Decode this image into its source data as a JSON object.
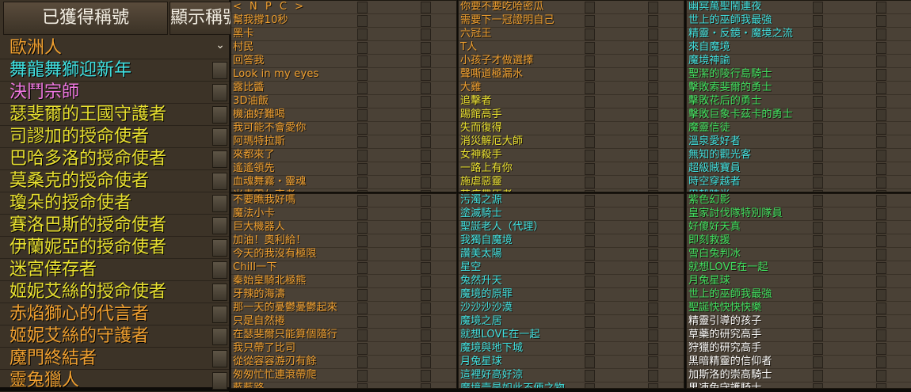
{
  "tabs": {
    "earned": "已獲得稱號",
    "display": "顯示稱號"
  },
  "colors": {
    "orange": "#f0a030",
    "yellow": "#e8e030",
    "cyan": "#40e0e0",
    "pink": "#f078e0",
    "green": "#40e060",
    "white": "#ffffff"
  },
  "left_titles": [
    {
      "text": "歐洲人",
      "color": "orange"
    },
    {
      "text": "舞龍舞獅迎新年",
      "color": "cyan"
    },
    {
      "text": "決鬥宗師",
      "color": "pink"
    },
    {
      "text": "瑟斐爾的王國守護者",
      "color": "yellow"
    },
    {
      "text": "司謬加的授命使者",
      "color": "yellow"
    },
    {
      "text": "巴哈多洛的授命使者",
      "color": "yellow"
    },
    {
      "text": "莫桑克的授命使者",
      "color": "yellow"
    },
    {
      "text": "瓊朵的授命使者",
      "color": "yellow"
    },
    {
      "text": "賽洛巴斯的授命使者",
      "color": "yellow"
    },
    {
      "text": "伊蘭妮亞的授命使者",
      "color": "yellow"
    },
    {
      "text": "迷宮倖存者",
      "color": "yellow"
    },
    {
      "text": "姬妮艾絲的授命使者",
      "color": "yellow"
    },
    {
      "text": "赤焰獅心的代言者",
      "color": "orange"
    },
    {
      "text": "姬妮艾絲的守護者",
      "color": "orange"
    },
    {
      "text": "魔門終結者",
      "color": "orange"
    },
    {
      "text": "靈兔獵人",
      "color": "orange"
    }
  ],
  "panels": [
    {
      "rows": [
        {
          "text": "< N P C >",
          "color": "orange",
          "header": true
        },
        {
          "text": "幫我撐10秒",
          "color": "orange"
        },
        {
          "text": "黑卡",
          "color": "orange"
        },
        {
          "text": "村民",
          "color": "orange"
        },
        {
          "text": "回答我",
          "color": "orange"
        },
        {
          "text": "Look in my eyes",
          "color": "orange"
        },
        {
          "text": "露比醬",
          "color": "orange"
        },
        {
          "text": "3D油飯",
          "color": "orange"
        },
        {
          "text": "機油好難喝",
          "color": "orange"
        },
        {
          "text": "我可能不會愛你",
          "color": "orange"
        },
        {
          "text": "阿瑪特拉斯",
          "color": "orange"
        },
        {
          "text": "來都來了",
          "color": "orange"
        },
        {
          "text": "遙遙領先",
          "color": "orange"
        },
        {
          "text": "血魂舞霧・靈魂",
          "color": "orange"
        },
        {
          "text": "米青靈ㄉ吏者",
          "color": "orange"
        }
      ]
    },
    {
      "rows": [
        {
          "text": "你要不要吃哈密瓜",
          "color": "orange"
        },
        {
          "text": "需要下一冠證明自己",
          "color": "orange"
        },
        {
          "text": "六冠王",
          "color": "orange"
        },
        {
          "text": "T人",
          "color": "orange"
        },
        {
          "text": "小孩子才做選擇",
          "color": "orange"
        },
        {
          "text": "聲嘶道極漏水",
          "color": "orange"
        },
        {
          "text": "大雞",
          "color": "orange"
        },
        {
          "text": "追擊者",
          "color": "yellow"
        },
        {
          "text": "踢館高手",
          "color": "yellow"
        },
        {
          "text": "失而復得",
          "color": "yellow"
        },
        {
          "text": "消災解厄大師",
          "color": "yellow"
        },
        {
          "text": "女神殺手",
          "color": "yellow"
        },
        {
          "text": "一路上有你",
          "color": "yellow"
        },
        {
          "text": "施虐惡靈",
          "color": "yellow"
        },
        {
          "text": "苦痛帶原者",
          "color": "yellow"
        }
      ]
    },
    {
      "rows": [
        {
          "text": "幽冥萬聖鬧連夜",
          "color": "cyan"
        },
        {
          "text": "世上的巫師我最強",
          "color": "cyan"
        },
        {
          "text": "精靈・反鏡・魔境之流",
          "color": "cyan"
        },
        {
          "text": "來自魔境",
          "color": "cyan"
        },
        {
          "text": "魔境神諭",
          "color": "cyan"
        },
        {
          "text": "聖潔的陵行島騎士",
          "color": "green"
        },
        {
          "text": "擊敗索斐爾的勇士",
          "color": "green"
        },
        {
          "text": "擊敗花后的勇士",
          "color": "green"
        },
        {
          "text": "擊敗巨象卡茲卡的勇士",
          "color": "green"
        },
        {
          "text": "魔靈信徒",
          "color": "green"
        },
        {
          "text": "溫泉愛好者",
          "color": "cyan"
        },
        {
          "text": "無知的觀光客",
          "color": "cyan"
        },
        {
          "text": "超級賊寶員",
          "color": "cyan"
        },
        {
          "text": "時空穿越者",
          "color": "cyan"
        },
        {
          "text": "甲殼時尚",
          "color": "cyan"
        }
      ]
    },
    {
      "rows": [
        {
          "text": "不要瞧我好嗎",
          "color": "orange"
        },
        {
          "text": "魔法小卡",
          "color": "orange"
        },
        {
          "text": "巨大機器人",
          "color": "orange"
        },
        {
          "text": "加油！奧利給！",
          "color": "orange"
        },
        {
          "text": "今天的我沒有極限",
          "color": "orange"
        },
        {
          "text": "Chill一下",
          "color": "orange"
        },
        {
          "text": "秦始皇騎北極熊",
          "color": "orange"
        },
        {
          "text": "牙辣的海濤",
          "color": "orange"
        },
        {
          "text": "那一天的憂鬱憂鬱起來",
          "color": "orange"
        },
        {
          "text": "只是自然捲",
          "color": "orange"
        },
        {
          "text": "在瑟斐爾只能算個隨行",
          "color": "orange"
        },
        {
          "text": "我只帶了比司",
          "color": "orange"
        },
        {
          "text": "從從容容游刃有餘",
          "color": "orange"
        },
        {
          "text": "匆匆忙忙連滾帶爬",
          "color": "orange"
        },
        {
          "text": "藍藍路",
          "color": "orange"
        }
      ]
    },
    {
      "rows": [
        {
          "text": "污濁之源",
          "color": "cyan"
        },
        {
          "text": "塗滅騎士",
          "color": "cyan"
        },
        {
          "text": "聖誕老人（代理）",
          "color": "cyan"
        },
        {
          "text": "我獨自魔境",
          "color": "cyan"
        },
        {
          "text": "讚美太陽",
          "color": "cyan"
        },
        {
          "text": "星空",
          "color": "cyan"
        },
        {
          "text": "兔然升天",
          "color": "cyan"
        },
        {
          "text": "魔境的原罪",
          "color": "cyan"
        },
        {
          "text": "沙沙沙沙漠",
          "color": "cyan"
        },
        {
          "text": "魔境之居",
          "color": "cyan"
        },
        {
          "text": "就想LOVE在一起",
          "color": "cyan"
        },
        {
          "text": "魔境與地下城",
          "color": "cyan"
        },
        {
          "text": "月兔星球",
          "color": "cyan"
        },
        {
          "text": "這裡好高好涼",
          "color": "cyan"
        },
        {
          "text": "魔境壹是如此不便之物",
          "color": "cyan"
        }
      ]
    },
    {
      "rows": [
        {
          "text": "紫色幻影",
          "color": "green"
        },
        {
          "text": "皇家討伐隊特別隊員",
          "color": "green"
        },
        {
          "text": "好傻好天真",
          "color": "green"
        },
        {
          "text": "即刻救援",
          "color": "green"
        },
        {
          "text": "雪白兔判冰",
          "color": "green"
        },
        {
          "text": "就想LOVE在一起",
          "color": "green"
        },
        {
          "text": "月兔星球",
          "color": "green"
        },
        {
          "text": "世上的巫師我最強",
          "color": "green"
        },
        {
          "text": "聖誕快快快快樂",
          "color": "green"
        },
        {
          "text": "精靈引導的孩子",
          "color": "white"
        },
        {
          "text": "草藥的研究高手",
          "color": "white"
        },
        {
          "text": "狩獵的研究高手",
          "color": "white"
        },
        {
          "text": "黑暗精靈的信仰者",
          "color": "white"
        },
        {
          "text": "加斯洛的崇高騎士",
          "color": "white"
        },
        {
          "text": "果凍兔守護騎士",
          "color": "white"
        }
      ]
    }
  ]
}
